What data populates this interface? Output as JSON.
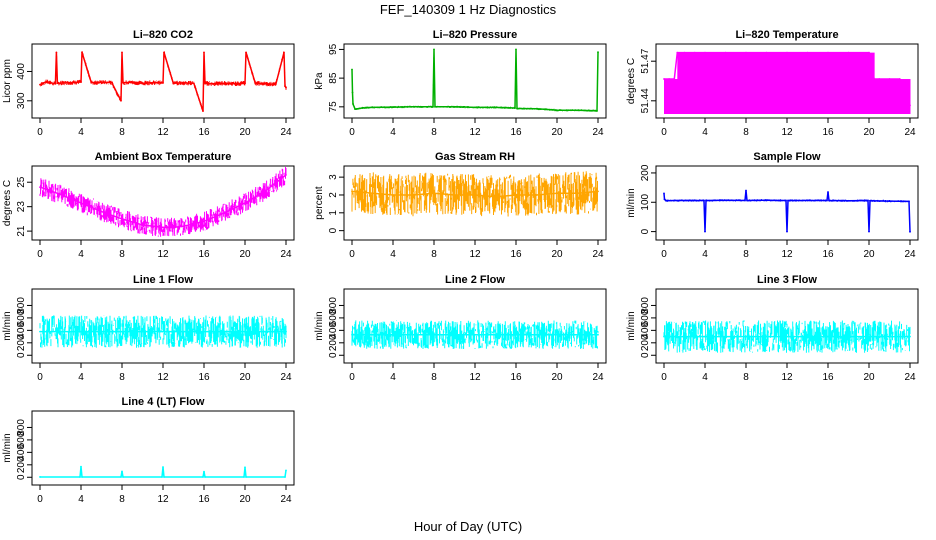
{
  "figure": {
    "title": "FEF_140309  1 Hz Diagnostics",
    "xlabel": "Hour of Day (UTC)"
  },
  "chart_data": [
    {
      "type": "line",
      "title": "Li–820 CO2",
      "ylabel": "Licor ppm",
      "color": "#ff0000",
      "xlim": [
        0,
        24
      ],
      "xticks": [
        0,
        4,
        8,
        12,
        16,
        20,
        24
      ],
      "ylim": [
        255,
        480
      ],
      "yticks": [
        300,
        400
      ],
      "series": [
        {
          "x": [
            0.0,
            0.3,
            0.6,
            1.5,
            1.6,
            1.7,
            3.0,
            4.0,
            4.1,
            5.0,
            6.0,
            7.0,
            7.9,
            8.0,
            8.1,
            9.0,
            10.0,
            11.0,
            12.0,
            12.1,
            13.0,
            14.0,
            15.0,
            15.9,
            16.0,
            16.1,
            17.0,
            18.0,
            19.0,
            20.0,
            20.1,
            21.0,
            22.0,
            23.0,
            23.8,
            23.9,
            24.0
          ],
          "values": [
            355,
            360,
            365,
            358,
            465,
            360,
            362,
            364,
            465,
            362,
            363,
            362,
            300,
            465,
            362,
            363,
            360,
            362,
            361,
            465,
            360,
            361,
            360,
            265,
            465,
            360,
            358,
            360,
            358,
            360,
            465,
            360,
            358,
            356,
            465,
            350,
            345
          ]
        }
      ]
    },
    {
      "type": "line",
      "title": "Li–820 Pressure",
      "ylabel": "kPa",
      "color": "#00b000",
      "xlim": [
        0,
        24
      ],
      "xticks": [
        0,
        4,
        8,
        12,
        16,
        20,
        24
      ],
      "ylim": [
        72.5,
        95.5
      ],
      "yticks": [
        75,
        85,
        95
      ],
      "series": [
        {
          "x": [
            0.0,
            0.05,
            0.1,
            0.3,
            1.0,
            2.0,
            4.0,
            6.0,
            7.9,
            8.0,
            8.1,
            10.0,
            12.0,
            14.0,
            15.9,
            16.0,
            16.1,
            18.0,
            19.5,
            20.0,
            22.0,
            23.9,
            24.0
          ],
          "values": [
            88,
            80,
            76,
            74.2,
            74.6,
            74.8,
            74.9,
            75.0,
            75.0,
            95,
            75.0,
            75.0,
            74.8,
            74.8,
            74.6,
            95,
            74.4,
            74.3,
            74.0,
            73.8,
            73.8,
            73.6,
            94
          ]
        }
      ]
    },
    {
      "type": "line",
      "title": "Li–820 Temperature",
      "ylabel": "degrees C",
      "color": "#ff00ff",
      "xlim": [
        0,
        24
      ],
      "xticks": [
        0,
        4,
        8,
        12,
        16,
        20,
        24
      ],
      "ylim": [
        51.43,
        51.48
      ],
      "yticks": [
        51.44,
        51.47
      ],
      "series": [
        {
          "x": [
            0,
            0.5,
            1,
            1.3,
            2,
            3,
            4,
            6,
            8,
            10,
            12,
            14,
            16,
            18,
            20,
            20.5,
            21,
            22,
            23,
            24
          ],
          "values": [
            51.4565,
            51.4565,
            51.4565,
            51.4765,
            51.4765,
            51.4765,
            51.4765,
            51.4765,
            51.4765,
            51.4765,
            51.4765,
            51.4765,
            51.4765,
            51.4765,
            51.4765,
            51.4565,
            51.4565,
            51.4565,
            51.4565,
            51.4365
          ]
        }
      ]
    },
    {
      "type": "line",
      "title": "Ambient Box Temperature",
      "ylabel": "degrees C",
      "color": "#ff00ff",
      "xlim": [
        0,
        24
      ],
      "xticks": [
        0,
        4,
        8,
        12,
        16,
        20,
        24
      ],
      "ylim": [
        20.6,
        26.0
      ],
      "yticks": [
        21,
        23,
        25
      ],
      "series": [
        {
          "x": [
            0,
            2,
            4,
            6,
            8,
            10,
            12,
            13,
            14,
            16,
            18,
            20,
            22,
            24
          ],
          "values": [
            24.6,
            24.0,
            23.3,
            22.6,
            22.0,
            21.5,
            21.3,
            21.3,
            21.4,
            21.8,
            22.5,
            23.3,
            24.3,
            25.6
          ]
        }
      ]
    },
    {
      "type": "line",
      "title": "Gas Stream RH",
      "ylabel": "percent",
      "color": "#ffa500",
      "xlim": [
        0,
        24
      ],
      "xticks": [
        0,
        4,
        8,
        12,
        16,
        20,
        24
      ],
      "ylim": [
        -0.3,
        3.4
      ],
      "yticks": [
        0,
        1,
        2,
        3
      ],
      "series": [
        {
          "x": [
            0,
            2,
            4,
            6,
            8,
            10,
            12,
            14,
            16,
            18,
            20,
            22,
            24
          ],
          "values": [
            2.2,
            2.1,
            2.0,
            2.0,
            2.1,
            2.0,
            2.0,
            1.9,
            2.0,
            2.0,
            2.1,
            2.1,
            2.2
          ]
        }
      ]
    },
    {
      "type": "line",
      "title": "Sample Flow",
      "ylabel": "ml/min",
      "color": "#0000ff",
      "xlim": [
        0,
        24
      ],
      "xticks": [
        0,
        4,
        8,
        12,
        16,
        20,
        24
      ],
      "ylim": [
        -15,
        210
      ],
      "yticks": [
        0,
        100,
        200
      ],
      "series": [
        {
          "x": [
            0,
            0.05,
            0.2,
            1,
            3.9,
            4.0,
            4.1,
            6,
            7.9,
            8.0,
            8.1,
            10,
            11.9,
            12.0,
            12.1,
            14,
            15.9,
            16.0,
            16.1,
            18,
            19.9,
            20.0,
            20.1,
            22,
            23.9,
            24.0
          ],
          "values": [
            130,
            110,
            105,
            106,
            106,
            0,
            106,
            107,
            106,
            140,
            106,
            107,
            106,
            0,
            106,
            106,
            106,
            135,
            106,
            105,
            106,
            0,
            105,
            104,
            103,
            0
          ]
        }
      ]
    },
    {
      "type": "line",
      "title": "Line 1 Flow",
      "ylabel": "ml/min",
      "color": "#00ffff",
      "xlim": [
        0,
        24
      ],
      "xticks": [
        0,
        4,
        8,
        12,
        16,
        20,
        24
      ],
      "ylim": [
        -60,
        1000
      ],
      "yticks": [
        0,
        200,
        400,
        600,
        800
      ],
      "series": [
        {
          "x": [
            0,
            2,
            4,
            6,
            8,
            10,
            12,
            14,
            16,
            18,
            20,
            22,
            24
          ],
          "values": [
            380,
            380,
            380,
            380,
            380,
            380,
            380,
            380,
            380,
            380,
            380,
            380,
            380
          ]
        }
      ]
    },
    {
      "type": "line",
      "title": "Line 2 Flow",
      "ylabel": "ml/min",
      "color": "#00ffff",
      "xlim": [
        0,
        24
      ],
      "xticks": [
        0,
        4,
        8,
        12,
        16,
        20,
        24
      ],
      "ylim": [
        -60,
        1000
      ],
      "yticks": [
        0,
        200,
        400,
        600,
        800
      ],
      "series": [
        {
          "x": [
            0,
            2,
            4,
            6,
            8,
            10,
            12,
            14,
            16,
            18,
            20,
            22,
            24
          ],
          "values": [
            330,
            330,
            330,
            330,
            330,
            330,
            330,
            330,
            330,
            330,
            330,
            330,
            330
          ]
        }
      ]
    },
    {
      "type": "line",
      "title": "Line 3 Flow",
      "ylabel": "ml/min",
      "color": "#00ffff",
      "xlim": [
        0,
        24
      ],
      "xticks": [
        0,
        4,
        8,
        12,
        16,
        20,
        24
      ],
      "ylim": [
        -60,
        1000
      ],
      "yticks": [
        0,
        200,
        400,
        600,
        800
      ],
      "series": [
        {
          "x": [
            0,
            2,
            4,
            6,
            8,
            10,
            12,
            14,
            16,
            18,
            20,
            22,
            24
          ],
          "values": [
            300,
            300,
            300,
            300,
            300,
            300,
            300,
            300,
            300,
            300,
            300,
            300,
            300
          ]
        }
      ]
    },
    {
      "type": "line",
      "title": "Line 4 (LT) Flow",
      "ylabel": "ml/min",
      "color": "#00ffff",
      "xlim": [
        0,
        24
      ],
      "xticks": [
        0,
        4,
        8,
        12,
        16,
        20,
        24
      ],
      "ylim": [
        -60,
        1000
      ],
      "yticks": [
        0,
        200,
        400,
        600,
        800
      ],
      "series": [
        {
          "x": [
            0,
            3.9,
            4.0,
            4.1,
            7.9,
            8.0,
            8.1,
            11.9,
            12.0,
            12.1,
            15.9,
            16.0,
            16.1,
            19.9,
            20.0,
            20.1,
            23.9,
            24.0
          ],
          "values": [
            5,
            5,
            170,
            5,
            5,
            95,
            5,
            5,
            165,
            5,
            5,
            90,
            5,
            5,
            160,
            5,
            5,
            110
          ]
        }
      ]
    }
  ]
}
